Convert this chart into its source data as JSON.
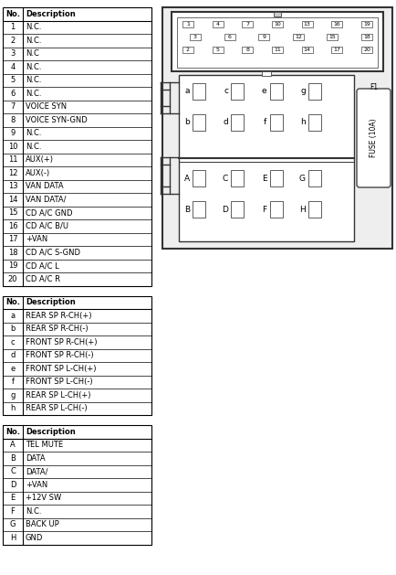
{
  "bg_color": "#ffffff",
  "table1": {
    "header": [
      "No.",
      "Description"
    ],
    "rows": [
      [
        "1",
        "N.C."
      ],
      [
        "2",
        "N.C."
      ],
      [
        "3",
        "N.C"
      ],
      [
        "4",
        "N.C."
      ],
      [
        "5",
        "N.C."
      ],
      [
        "6",
        "N.C."
      ],
      [
        "7",
        "VOICE SYN"
      ],
      [
        "8",
        "VOICE SYN-GND"
      ],
      [
        "9",
        "N.C."
      ],
      [
        "10",
        "N.C."
      ],
      [
        "11",
        "AUX(+)"
      ],
      [
        "12",
        "AUX(-)"
      ],
      [
        "13",
        "VAN DATA"
      ],
      [
        "14",
        "VAN DATA/"
      ],
      [
        "15",
        "CD A/C GND"
      ],
      [
        "16",
        "CD A/C B/U"
      ],
      [
        "17",
        "+VAN"
      ],
      [
        "18",
        "CD A/C S-GND"
      ],
      [
        "19",
        "CD A/C L"
      ],
      [
        "20",
        "CD A/C R"
      ]
    ]
  },
  "table2": {
    "header": [
      "No.",
      "Description"
    ],
    "rows": [
      [
        "a",
        "REAR SP R-CH(+)"
      ],
      [
        "b",
        "REAR SP R-CH(-)"
      ],
      [
        "c",
        "FRONT SP R-CH(+)"
      ],
      [
        "d",
        "FRONT SP R-CH(-)"
      ],
      [
        "e",
        "FRONT SP L-CH(+)"
      ],
      [
        "f",
        "FRONT SP L-CH(-)"
      ],
      [
        "g",
        "REAR SP L-CH(+)"
      ],
      [
        "h",
        "REAR SP L-CH(-)"
      ]
    ]
  },
  "table3": {
    "header": [
      "No.",
      "Description"
    ],
    "rows": [
      [
        "A",
        "TEL MUTE"
      ],
      [
        "B",
        "DATA"
      ],
      [
        "C",
        "DATA/"
      ],
      [
        "D",
        "+VAN"
      ],
      [
        "E",
        "+12V SW"
      ],
      [
        "F",
        "N.C."
      ],
      [
        "G",
        "BACK UP"
      ],
      [
        "H",
        "GND"
      ]
    ]
  },
  "conn_row1": [
    "1",
    "4",
    "7",
    "10",
    "13",
    "16",
    "19"
  ],
  "conn_row2": [
    "3",
    "6",
    "9",
    "12",
    "15",
    "18"
  ],
  "conn_row3": [
    "2",
    "5",
    "8",
    "11",
    "14",
    "17",
    "20"
  ],
  "conn_mid_top": [
    "a",
    "c",
    "e",
    "g"
  ],
  "conn_mid_bot": [
    "b",
    "d",
    "f",
    "h"
  ],
  "conn_bot_top": [
    "A",
    "C",
    "E",
    "G"
  ],
  "conn_bot_bot": [
    "B",
    "D",
    "F",
    "H"
  ],
  "fuse_label": "FUSE (10A)",
  "fuse_id": "F1"
}
